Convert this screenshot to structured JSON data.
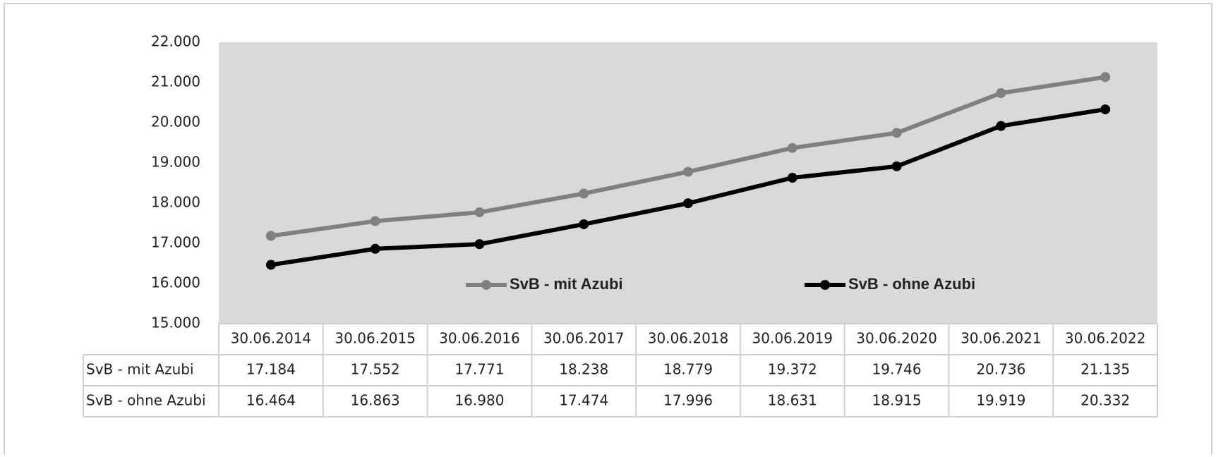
{
  "chart_data": {
    "type": "line",
    "categories": [
      "30.06.2014",
      "30.06.2015",
      "30.06.2016",
      "30.06.2017",
      "30.06.2018",
      "30.06.2019",
      "30.06.2020",
      "30.06.2021",
      "30.06.2022"
    ],
    "series": [
      {
        "name": "SvB - mit Azubi",
        "color": "#808080",
        "values": [
          17184,
          17552,
          17771,
          18238,
          18779,
          19372,
          19746,
          20736,
          21135
        ],
        "value_labels": [
          "17.184",
          "17.552",
          "17.771",
          "18.238",
          "18.779",
          "19.372",
          "19.746",
          "20.736",
          "21.135"
        ]
      },
      {
        "name": "SvB - ohne Azubi",
        "color": "#000000",
        "values": [
          16464,
          16863,
          16980,
          17474,
          17996,
          18631,
          18915,
          19919,
          20332
        ],
        "value_labels": [
          "16.464",
          "16.863",
          "16.980",
          "17.474",
          "17.996",
          "18.631",
          "18.915",
          "19.919",
          "20.332"
        ]
      }
    ],
    "ylim": [
      15000,
      22000
    ],
    "yticks": [
      {
        "value": 15000,
        "label": "15.000"
      },
      {
        "value": 16000,
        "label": "16.000"
      },
      {
        "value": 17000,
        "label": "17.000"
      },
      {
        "value": 18000,
        "label": "18.000"
      },
      {
        "value": 19000,
        "label": "19.000"
      },
      {
        "value": 20000,
        "label": "20.000"
      },
      {
        "value": 21000,
        "label": "21.000"
      },
      {
        "value": 22000,
        "label": "22.000"
      }
    ],
    "legend": "inside-bottom",
    "plot_background": "#d9d9d9"
  }
}
